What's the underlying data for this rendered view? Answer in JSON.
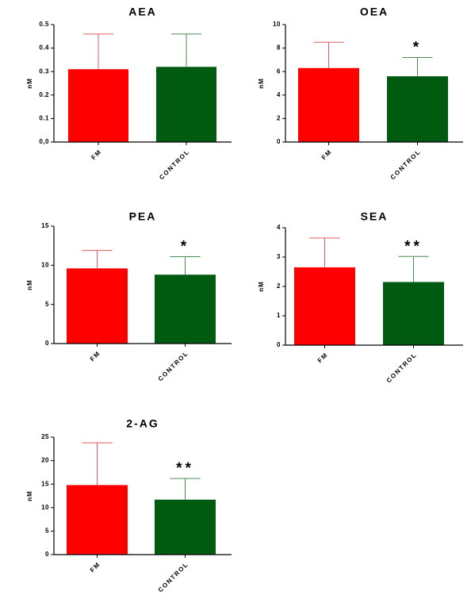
{
  "chart_data": [
    {
      "type": "bar",
      "title": "AEA",
      "ylabel": "nM",
      "categories": [
        "FM",
        "CONTROL"
      ],
      "values": [
        0.31,
        0.32
      ],
      "error_upper": [
        0.46,
        0.46
      ],
      "ylim": [
        0,
        0.5
      ],
      "yticks": [
        "0,0",
        "0.1",
        "0.2",
        "0.3",
        "0.4",
        "0.5"
      ],
      "significance": [
        "",
        ""
      ],
      "colors": [
        "#ff0000",
        "#005a0f"
      ],
      "error_colors": [
        "#e85a5a",
        "#4d8a52"
      ]
    },
    {
      "type": "bar",
      "title": "OEA",
      "ylabel": "nM",
      "categories": [
        "FM",
        "CONTROL"
      ],
      "values": [
        6.3,
        5.6
      ],
      "error_upper": [
        8.5,
        7.2
      ],
      "ylim": [
        0,
        10
      ],
      "yticks": [
        "0",
        "2",
        "4",
        "6",
        "8",
        "10"
      ],
      "significance": [
        "",
        "*"
      ],
      "colors": [
        "#ff0000",
        "#005a0f"
      ],
      "error_colors": [
        "#e85a5a",
        "#4d8a52"
      ]
    },
    {
      "type": "bar",
      "title": "PEA",
      "ylabel": "nM",
      "categories": [
        "FM",
        "CONTROL"
      ],
      "values": [
        9.6,
        8.8
      ],
      "error_upper": [
        11.9,
        11.1
      ],
      "ylim": [
        0,
        15
      ],
      "yticks": [
        "0",
        "5",
        "10",
        "15"
      ],
      "significance": [
        "",
        "*"
      ],
      "colors": [
        "#ff0000",
        "#005a0f"
      ],
      "error_colors": [
        "#e85a5a",
        "#4d8a52"
      ]
    },
    {
      "type": "bar",
      "title": "SEA",
      "ylabel": "nM",
      "categories": [
        "FM",
        "CONTROL"
      ],
      "values": [
        2.65,
        2.15
      ],
      "error_upper": [
        3.65,
        3.02
      ],
      "ylim": [
        0,
        4
      ],
      "yticks": [
        "0",
        "1",
        "2",
        "3",
        "4"
      ],
      "significance": [
        "",
        "**"
      ],
      "colors": [
        "#ff0000",
        "#005a0f"
      ],
      "error_colors": [
        "#e85a5a",
        "#4d8a52"
      ]
    },
    {
      "type": "bar",
      "title": "2-AG",
      "ylabel": "nM",
      "categories": [
        "FM",
        "CONTROL"
      ],
      "values": [
        14.8,
        11.7
      ],
      "error_upper": [
        23.8,
        16.2
      ],
      "ylim": [
        0,
        25
      ],
      "yticks": [
        "0",
        "5",
        "10",
        "15",
        "20",
        "25"
      ],
      "significance": [
        "",
        "**"
      ],
      "colors": [
        "#ff0000",
        "#005a0f"
      ],
      "error_colors": [
        "#e85a5a",
        "#4d8a52"
      ]
    }
  ]
}
